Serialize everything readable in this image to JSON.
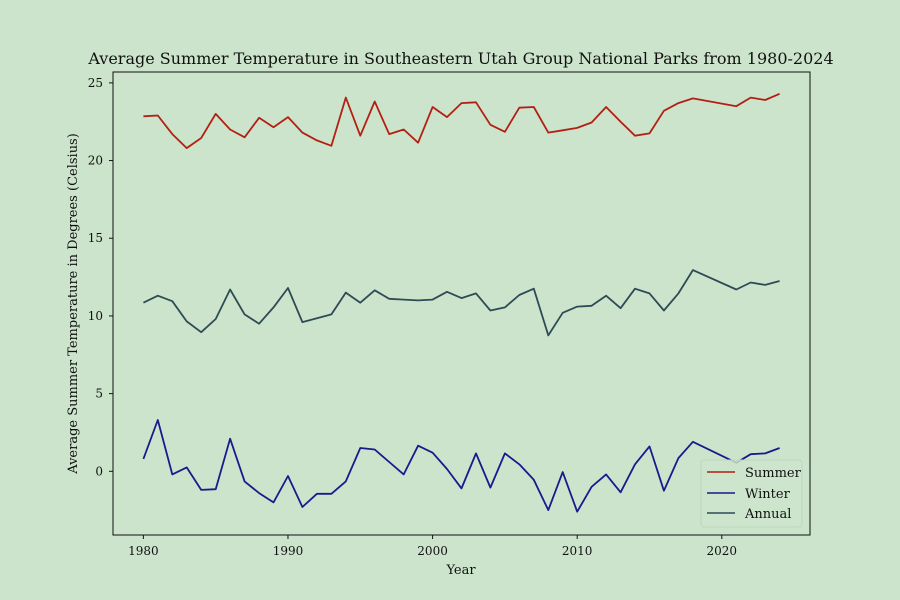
{
  "chart_data": {
    "type": "line",
    "title": "Average Summer Temperature in Southeastern Utah Group National Parks from 1980-2024",
    "xlabel": "Year",
    "ylabel": "Average Summer Temperature in Degrees (Celsius)",
    "xlim": [
      1977.9,
      2026.1
    ],
    "ylim": [
      -4.1,
      25.7
    ],
    "xticks": [
      1980,
      1990,
      2000,
      2010,
      2020
    ],
    "yticks": [
      0,
      5,
      10,
      15,
      20,
      25
    ],
    "grid": false,
    "legend": "lower-right",
    "x": [
      1980,
      1981,
      1982,
      1983,
      1984,
      1985,
      1986,
      1987,
      1988,
      1989,
      1990,
      1991,
      1992,
      1993,
      1994,
      1995,
      1996,
      1997,
      1998,
      1999,
      2000,
      2001,
      2002,
      2003,
      2004,
      2005,
      2006,
      2007,
      2008,
      2009,
      2010,
      2011,
      2012,
      2013,
      2014,
      2015,
      2016,
      2017,
      2018,
      2021,
      2022,
      2023,
      2024
    ],
    "series": [
      {
        "name": "Summer",
        "color": "#b22014",
        "values": [
          22.85,
          22.9,
          21.7,
          20.8,
          21.45,
          23.0,
          22.0,
          21.5,
          22.75,
          22.15,
          22.8,
          21.8,
          21.3,
          20.95,
          24.05,
          21.6,
          23.8,
          21.7,
          22.0,
          21.15,
          23.45,
          22.8,
          23.7,
          23.75,
          22.3,
          21.85,
          23.4,
          23.45,
          21.8,
          21.95,
          22.1,
          22.45,
          23.45,
          22.5,
          21.6,
          21.75,
          23.2,
          23.7,
          24.0,
          23.5,
          24.05,
          23.9,
          24.3
        ]
      },
      {
        "name": "Winter",
        "color": "#1a1a8c",
        "values": [
          0.8,
          3.3,
          -0.2,
          0.25,
          -1.2,
          -1.15,
          2.1,
          -0.65,
          -1.4,
          -2.0,
          -0.3,
          -2.3,
          -1.45,
          -1.45,
          -0.65,
          1.5,
          1.4,
          0.6,
          -0.2,
          1.65,
          1.2,
          0.15,
          -1.1,
          1.15,
          -1.05,
          1.15,
          0.45,
          -0.55,
          -2.5,
          -0.05,
          -2.6,
          -1.0,
          -0.2,
          -1.35,
          0.45,
          1.6,
          -1.25,
          0.85,
          1.9,
          0.55,
          1.1,
          1.15,
          1.5
        ]
      },
      {
        "name": "Annual",
        "color": "#2e4b55",
        "values": [
          10.85,
          11.3,
          10.95,
          9.65,
          8.95,
          9.8,
          11.7,
          10.1,
          9.5,
          10.55,
          11.8,
          9.6,
          9.85,
          10.1,
          11.5,
          10.85,
          11.65,
          11.1,
          11.05,
          11.0,
          11.05,
          11.55,
          11.15,
          11.45,
          10.35,
          10.55,
          11.35,
          11.75,
          8.75,
          10.2,
          10.6,
          10.65,
          11.3,
          10.5,
          11.75,
          11.45,
          10.35,
          11.45,
          12.95,
          11.7,
          12.15,
          12.0,
          12.25
        ]
      }
    ]
  }
}
